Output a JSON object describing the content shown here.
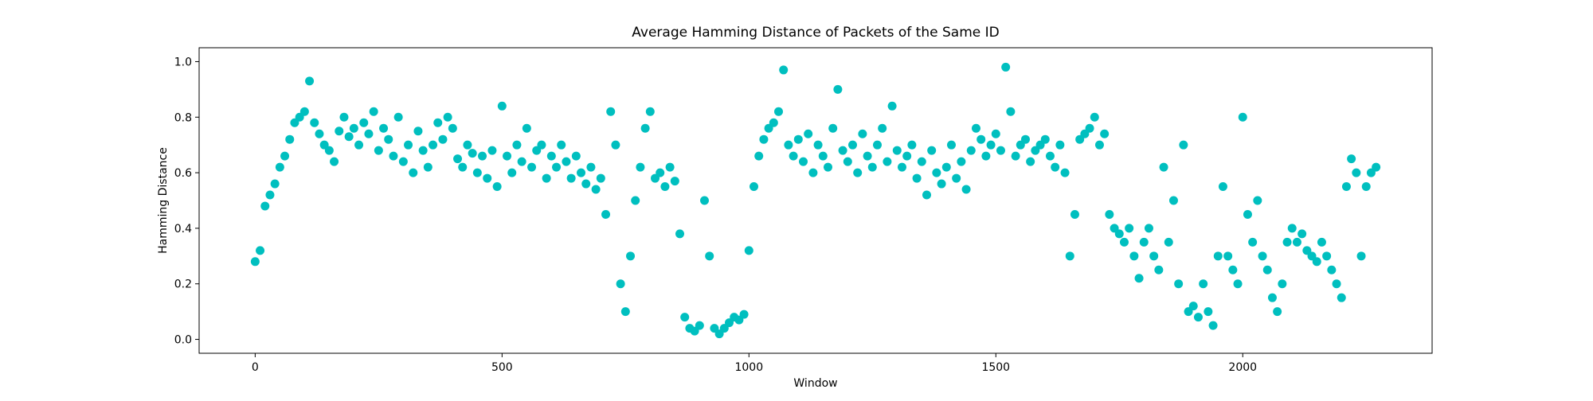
{
  "chart_data": {
    "type": "scatter",
    "title": "Average Hamming Distance of Packets of the Same ID",
    "x_label": "Window",
    "y_label": "Hamming Distance",
    "color": "#00bfbf",
    "xlim": [
      -113.5,
      2383.5
    ],
    "ylim": [
      -0.05,
      1.05
    ],
    "xticks": [
      0,
      500,
      1000,
      1500,
      2000
    ],
    "yticks": [
      {
        "value": 0,
        "label": "0.0"
      },
      0.2,
      0.4,
      0.6,
      0.8,
      {
        "value": 1,
        "label": "1.0"
      }
    ],
    "x": [
      0,
      10,
      20,
      30,
      40,
      50,
      60,
      70,
      80,
      90,
      100,
      110,
      120,
      130,
      140,
      150,
      160,
      170,
      180,
      190,
      200,
      210,
      220,
      230,
      240,
      250,
      260,
      270,
      280,
      290,
      300,
      310,
      320,
      330,
      340,
      350,
      360,
      370,
      380,
      390,
      400,
      410,
      420,
      430,
      440,
      450,
      460,
      470,
      480,
      490,
      500,
      510,
      520,
      530,
      540,
      550,
      560,
      570,
      580,
      590,
      600,
      610,
      620,
      630,
      640,
      650,
      660,
      670,
      680,
      690,
      700,
      710,
      720,
      730,
      740,
      750,
      760,
      770,
      780,
      790,
      800,
      810,
      820,
      830,
      840,
      850,
      860,
      870,
      880,
      890,
      900,
      910,
      920,
      930,
      940,
      950,
      960,
      970,
      980,
      990,
      1000,
      1010,
      1020,
      1030,
      1040,
      1050,
      1060,
      1070,
      1080,
      1090,
      1100,
      1110,
      1120,
      1130,
      1140,
      1150,
      1160,
      1170,
      1180,
      1190,
      1200,
      1210,
      1220,
      1230,
      1240,
      1250,
      1260,
      1270,
      1280,
      1290,
      1300,
      1310,
      1320,
      1330,
      1340,
      1350,
      1360,
      1370,
      1380,
      1390,
      1400,
      1410,
      1420,
      1430,
      1440,
      1450,
      1460,
      1470,
      1480,
      1490,
      1500,
      1510,
      1520,
      1530,
      1540,
      1550,
      1560,
      1570,
      1580,
      1590,
      1600,
      1610,
      1620,
      1630,
      1640,
      1650,
      1660,
      1670,
      1680,
      1690,
      1700,
      1710,
      1720,
      1730,
      1740,
      1750,
      1760,
      1770,
      1780,
      1790,
      1800,
      1810,
      1820,
      1830,
      1840,
      1850,
      1860,
      1870,
      1880,
      1890,
      1900,
      1910,
      1920,
      1930,
      1940,
      1950,
      1960,
      1970,
      1980,
      1990,
      2000,
      2010,
      2020,
      2030,
      2040,
      2050,
      2060,
      2070,
      2080,
      2090,
      2100,
      2110,
      2120,
      2130,
      2140,
      2150,
      2160,
      2170,
      2180,
      2190,
      2200,
      2210,
      2220,
      2230,
      2240,
      2250,
      2260,
      2270
    ],
    "values": [
      0.28,
      0.32,
      0.48,
      0.52,
      0.56,
      0.62,
      0.66,
      0.72,
      0.78,
      0.8,
      0.82,
      0.93,
      0.78,
      0.74,
      0.7,
      0.68,
      0.64,
      0.75,
      0.8,
      0.73,
      0.76,
      0.7,
      0.78,
      0.74,
      0.82,
      0.68,
      0.76,
      0.72,
      0.66,
      0.8,
      0.64,
      0.7,
      0.6,
      0.75,
      0.68,
      0.62,
      0.7,
      0.78,
      0.72,
      0.8,
      0.76,
      0.65,
      0.62,
      0.7,
      0.67,
      0.6,
      0.66,
      0.58,
      0.68,
      0.55,
      0.84,
      0.66,
      0.6,
      0.7,
      0.64,
      0.76,
      0.62,
      0.68,
      0.7,
      0.58,
      0.66,
      0.62,
      0.7,
      0.64,
      0.58,
      0.66,
      0.6,
      0.56,
      0.62,
      0.54,
      0.58,
      0.45,
      0.82,
      0.7,
      0.2,
      0.1,
      0.3,
      0.5,
      0.62,
      0.76,
      0.82,
      0.58,
      0.6,
      0.55,
      0.62,
      0.57,
      0.38,
      0.08,
      0.04,
      0.03,
      0.05,
      0.5,
      0.3,
      0.04,
      0.02,
      0.04,
      0.06,
      0.08,
      0.07,
      0.09,
      0.32,
      0.55,
      0.66,
      0.72,
      0.76,
      0.78,
      0.82,
      0.97,
      0.7,
      0.66,
      0.72,
      0.64,
      0.74,
      0.6,
      0.7,
      0.66,
      0.62,
      0.76,
      0.9,
      0.68,
      0.64,
      0.7,
      0.6,
      0.74,
      0.66,
      0.62,
      0.7,
      0.76,
      0.64,
      0.84,
      0.68,
      0.62,
      0.66,
      0.7,
      0.58,
      0.64,
      0.52,
      0.68,
      0.6,
      0.56,
      0.62,
      0.7,
      0.58,
      0.64,
      0.54,
      0.68,
      0.76,
      0.72,
      0.66,
      0.7,
      0.74,
      0.68,
      0.98,
      0.82,
      0.66,
      0.7,
      0.72,
      0.64,
      0.68,
      0.7,
      0.72,
      0.66,
      0.62,
      0.7,
      0.6,
      0.3,
      0.45,
      0.72,
      0.74,
      0.76,
      0.8,
      0.7,
      0.74,
      0.45,
      0.4,
      0.38,
      0.35,
      0.4,
      0.3,
      0.22,
      0.35,
      0.4,
      0.3,
      0.25,
      0.62,
      0.35,
      0.5,
      0.2,
      0.7,
      0.1,
      0.12,
      0.08,
      0.2,
      0.1,
      0.05,
      0.3,
      0.55,
      0.3,
      0.25,
      0.2,
      0.8,
      0.45,
      0.35,
      0.5,
      0.3,
      0.25,
      0.15,
      0.1,
      0.2,
      0.35,
      0.4,
      0.35,
      0.38,
      0.32,
      0.3,
      0.28,
      0.35,
      0.3,
      0.25,
      0.2,
      0.15,
      0.55,
      0.65,
      0.6,
      0.3,
      0.55,
      0.6,
      0.62
    ]
  }
}
